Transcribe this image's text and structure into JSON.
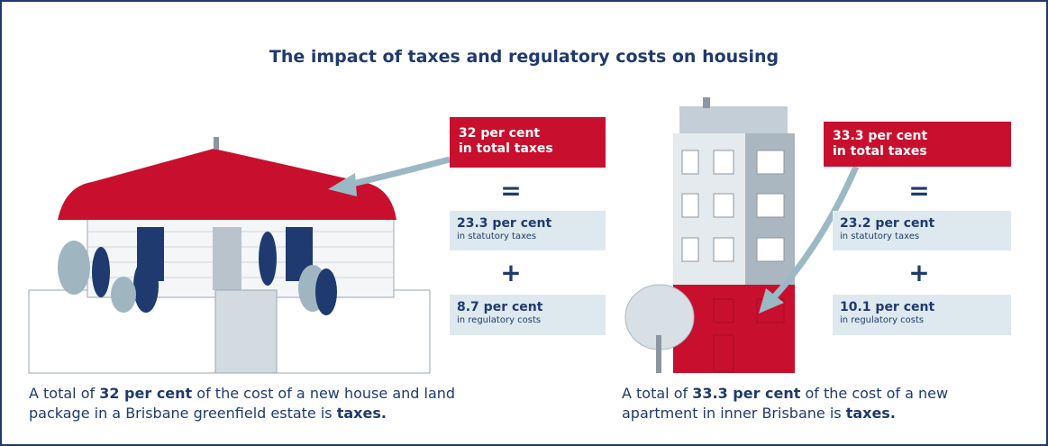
{
  "title": "The impact of taxes and regulatory costs on housing",
  "panels": [
    {
      "total": {
        "amount": "32 per cent",
        "label": "in total taxes"
      },
      "equals": "=",
      "statutory": {
        "amount": "23.3 per cent",
        "label": "in statutory taxes"
      },
      "plus": "+",
      "regulatory": {
        "amount": "8.7 per cent",
        "label": "in regulatory costs"
      },
      "caption": [
        "A total of ",
        "32 per cent",
        " of the cost of a new house and land package in a Brisbane greenfield estate is ",
        "taxes."
      ]
    },
    {
      "total": {
        "amount": "33.3 per cent",
        "label": "in total taxes"
      },
      "equals": "=",
      "statutory": {
        "amount": "23.2 per cent",
        "label": "in statutory taxes"
      },
      "plus": "+",
      "regulatory": {
        "amount": "10.1 per cent",
        "label": "in regulatory costs"
      },
      "caption": [
        "A total of ",
        "33.3 per cent",
        " of the cost of a new apartment in inner Brisbane is ",
        "taxes."
      ]
    }
  ]
}
